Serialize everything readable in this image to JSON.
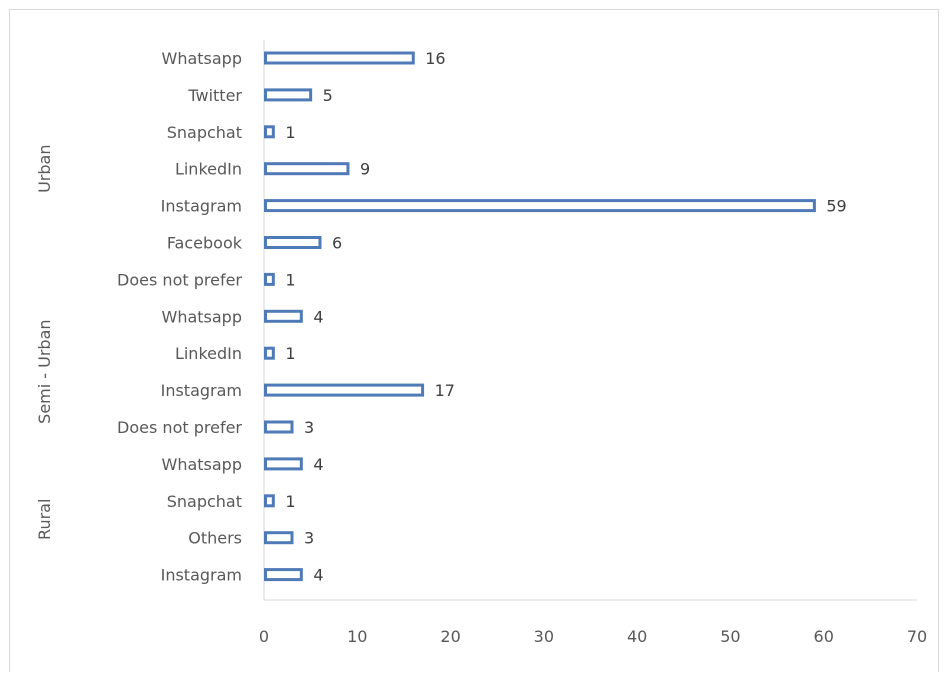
{
  "chart_data": {
    "type": "bar",
    "orientation": "horizontal",
    "title": "",
    "xlabel": "",
    "ylabel": "",
    "xlim": [
      0,
      70
    ],
    "x_ticks": [
      0,
      10,
      20,
      30,
      40,
      50,
      60,
      70
    ],
    "grid": false,
    "legend": "none",
    "bar_style": "outline",
    "bar_color": "#4f7ab8",
    "groups": [
      {
        "name": "Urban",
        "items": [
          {
            "category": "Whatsapp",
            "value": 16
          },
          {
            "category": "Twitter",
            "value": 5
          },
          {
            "category": "Snapchat",
            "value": 1
          },
          {
            "category": "LinkedIn",
            "value": 9
          },
          {
            "category": "Instagram",
            "value": 59
          },
          {
            "category": "Facebook",
            "value": 6
          },
          {
            "category": "Does not prefer",
            "value": 1
          }
        ]
      },
      {
        "name": "Semi - Urban",
        "items": [
          {
            "category": "Whatsapp",
            "value": 4
          },
          {
            "category": "LinkedIn",
            "value": 1
          },
          {
            "category": "Instagram",
            "value": 17
          },
          {
            "category": "Does not prefer",
            "value": 3
          }
        ]
      },
      {
        "name": "Rural",
        "items": [
          {
            "category": "Whatsapp",
            "value": 4
          },
          {
            "category": "Snapchat",
            "value": 1
          },
          {
            "category": "Others",
            "value": 3
          },
          {
            "category": "Instagram",
            "value": 4
          }
        ]
      }
    ]
  }
}
